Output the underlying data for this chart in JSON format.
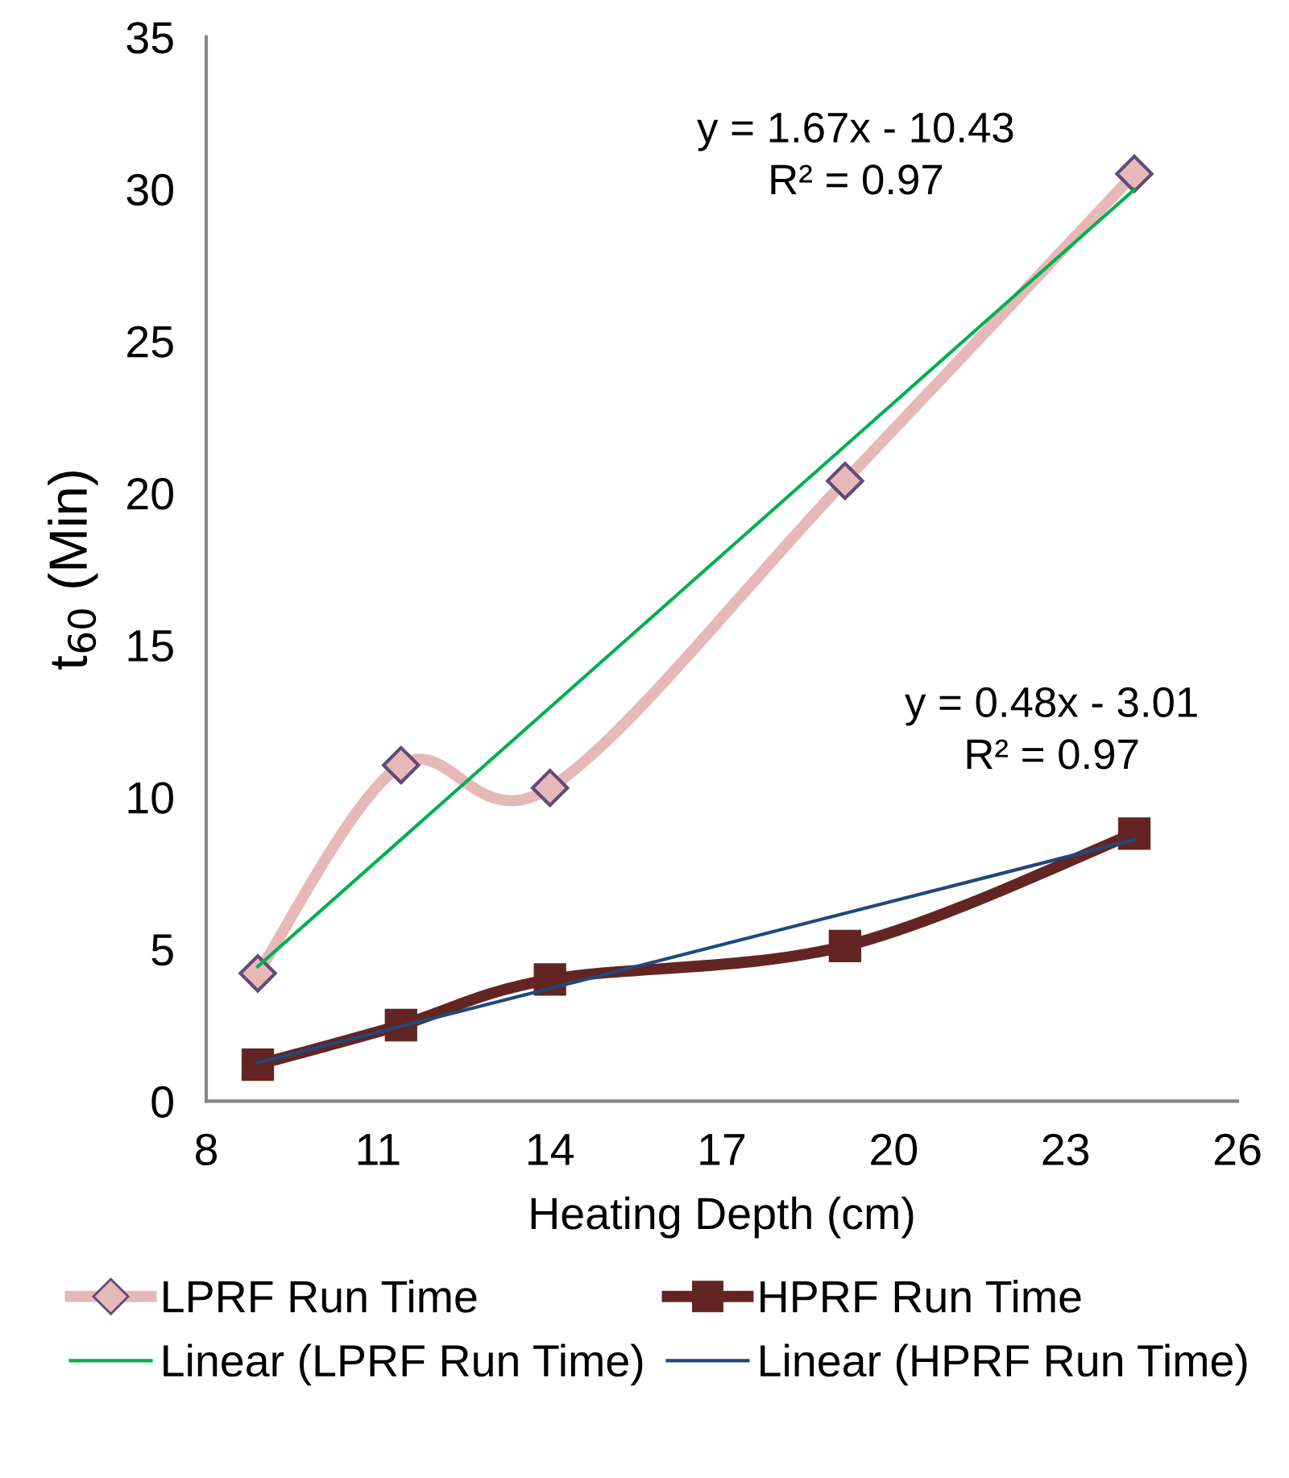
{
  "chart_data": {
    "type": "line",
    "xlabel": "Heating Depth (cm)",
    "ylabel": "t$_{60}$ (Min)",
    "xlim": [
      8,
      26
    ],
    "xticks": [
      8,
      11,
      14,
      17,
      20,
      23,
      26
    ],
    "ylim": [
      0,
      35
    ],
    "yticks": [
      0,
      5,
      10,
      15,
      20,
      25,
      30,
      35
    ],
    "grid": false,
    "legend": "bottom",
    "series": [
      {
        "name": "LPRF Run Time",
        "color": "#e6b9b8",
        "marker": "diamond",
        "x": [
          8.9,
          11.4,
          14.0,
          19.15,
          24.2
        ],
        "values": [
          4.2,
          11.05,
          10.3,
          20.4,
          30.5
        ]
      },
      {
        "name": "HPRF Run Time",
        "color": "#632523",
        "marker": "square",
        "x": [
          8.9,
          11.4,
          14.0,
          19.15,
          24.2
        ],
        "values": [
          1.2,
          2.5,
          4.0,
          5.1,
          8.8
        ]
      },
      {
        "name": "Linear (LPRF Run Time)",
        "color": "#00b050",
        "marker": "none",
        "x": [
          8.9,
          24.2
        ],
        "values": [
          4.43,
          29.98
        ]
      },
      {
        "name": "Linear (HPRF Run Time)",
        "color": "#1f497d",
        "marker": "none",
        "x": [
          8.9,
          24.2
        ],
        "values": [
          1.26,
          8.6
        ]
      }
    ],
    "annotations": [
      "y = 1.67x - 10.43\nR² = 0.97",
      "y = 0.48x - 3.01\nR² = 0.97"
    ]
  }
}
